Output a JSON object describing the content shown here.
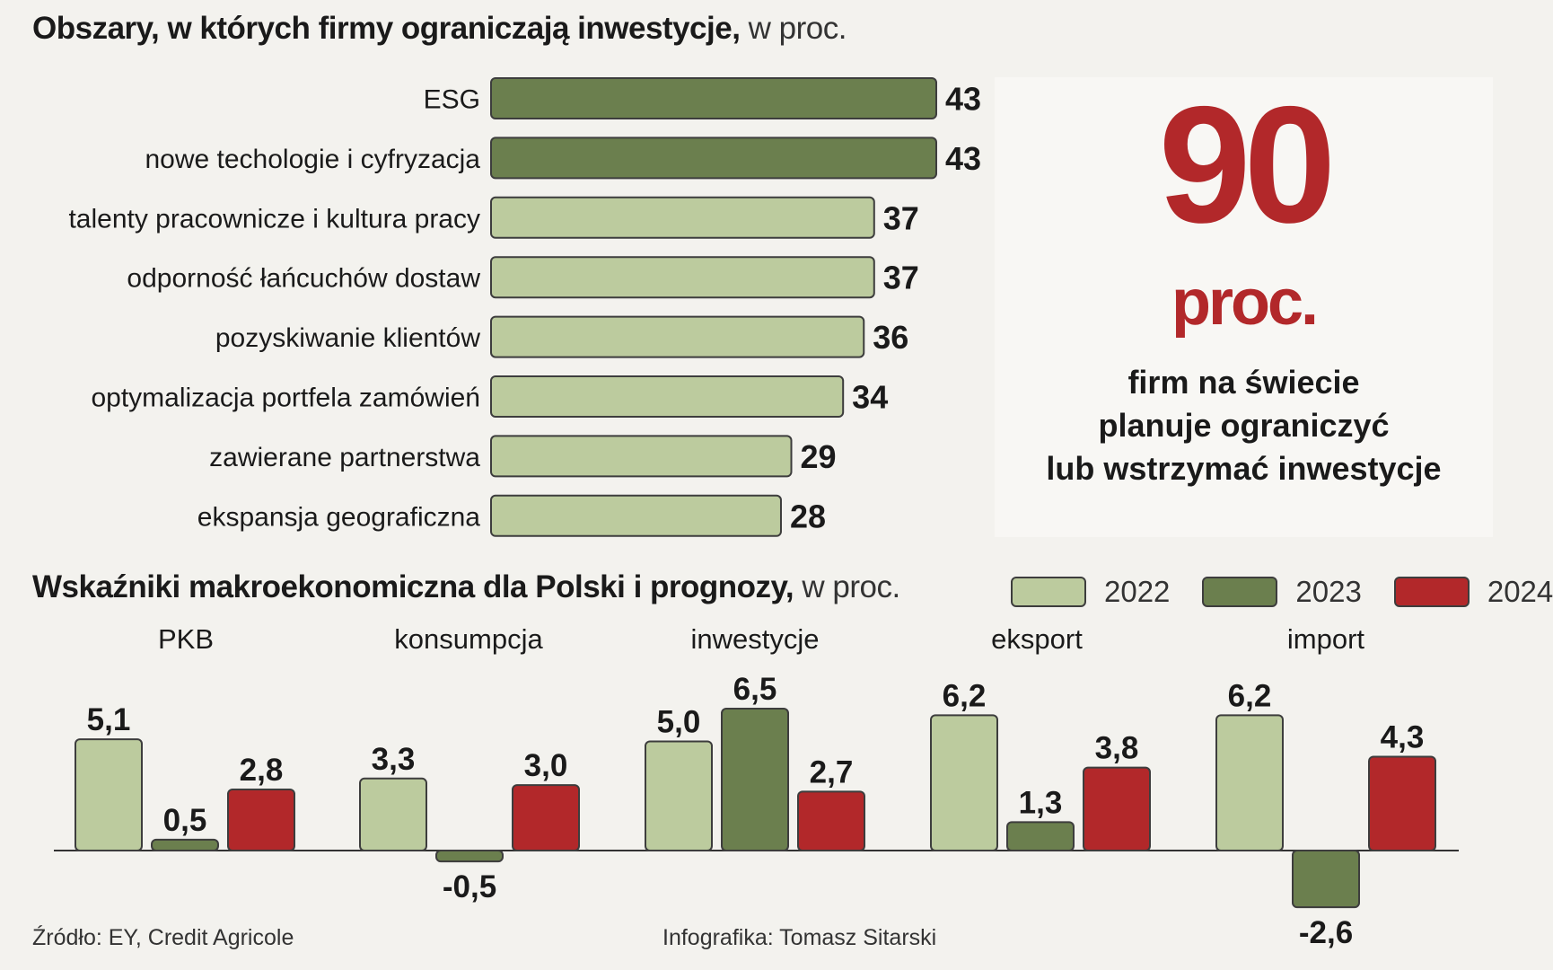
{
  "top_section": {
    "title": "Obszary, w których firmy ograniczają inwestycje,",
    "unit": "w  proc."
  },
  "callout": {
    "number": "90",
    "unit": "proc.",
    "lines": [
      "firm na świecie",
      "planuje ograniczyć",
      "lub wstrzymać inwestycje"
    ]
  },
  "bottom_section": {
    "title": "Wskaźniki makroekonomiczna dla Polski i prognozy,",
    "unit": "w proc."
  },
  "legend": [
    {
      "label": "2022",
      "color": "#bccb9e"
    },
    {
      "label": "2023",
      "color": "#6b7f4e"
    },
    {
      "label": "2024",
      "color": "#b2282a"
    }
  ],
  "footer": {
    "source": "Źródło: EY, Credit Agricole",
    "credit": "Infografika: Tomasz Sitarski"
  },
  "colors": {
    "dark_green": "#6b7f4e",
    "light_green": "#bccb9e",
    "red": "#b2282a",
    "outline": "#3d3d3d"
  },
  "chart_data": [
    {
      "type": "bar",
      "orientation": "horizontal",
      "title": "Obszary, w których firmy ograniczają inwestycje, w  proc.",
      "categories": [
        "ESG",
        "nowe techologie i cyfryzacja",
        "talenty pracownicze i kultura pracy",
        "odporność łańcuchów dostaw",
        "pozyskiwanie klientów",
        "optymalizacja portfela zamówień",
        "zawierane partnerstwa",
        "ekspansja geograficzna"
      ],
      "values": [
        43,
        43,
        37,
        37,
        36,
        34,
        29,
        28
      ],
      "highlight": [
        true,
        true,
        false,
        false,
        false,
        false,
        false,
        false
      ],
      "data_labels": [
        "43",
        "43",
        "37",
        "37",
        "36",
        "34",
        "29",
        "28"
      ],
      "xlim": [
        0,
        43
      ],
      "grid": false
    },
    {
      "type": "bar",
      "orientation": "vertical",
      "title": "Wskaźniki makroekonomiczna dla Polski i prognozy, w proc.",
      "categories": [
        "PKB",
        "konsumpcja",
        "inwestycje",
        "eksport",
        "import"
      ],
      "series": [
        {
          "name": "2022",
          "values": [
            5.1,
            3.3,
            5.0,
            6.2,
            6.2
          ],
          "labels": [
            "5,1",
            "3,3",
            "5,0",
            "6,2",
            "6,2"
          ]
        },
        {
          "name": "2023",
          "values": [
            0.5,
            -0.5,
            6.5,
            1.3,
            -2.6
          ],
          "labels": [
            "0,5",
            "-0,5",
            "6,5",
            "1,3",
            "-2,6"
          ]
        },
        {
          "name": "2024",
          "values": [
            2.8,
            3.0,
            2.7,
            3.8,
            4.3
          ],
          "labels": [
            "2,8",
            "3,0",
            "2,7",
            "3,8",
            "4,3"
          ]
        }
      ],
      "ylim": [
        -2.6,
        6.5
      ],
      "grid": false,
      "legend": "top-right"
    }
  ]
}
